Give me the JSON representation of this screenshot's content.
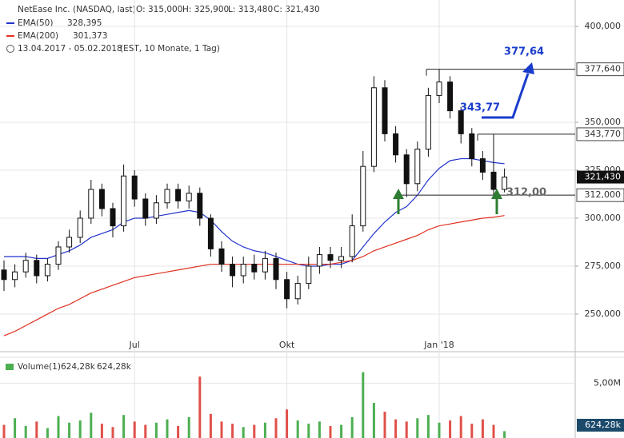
{
  "chart_data": {
    "type": "candlestick",
    "header": {
      "title": "NetEase Inc. (NASDAQ, last)",
      "open": "O: 315,000",
      "high": "H: 325,900",
      "low": "L: 313,480",
      "close": "C: 321,430",
      "period": "13.04.2017 - 05.02.2018",
      "settings": "(EST, 10 Monate, 1 Tag)"
    },
    "categories": [
      null,
      null,
      null,
      null,
      null,
      null,
      null,
      null,
      null,
      null,
      null,
      null,
      "Jul",
      null,
      null,
      null,
      null,
      null,
      null,
      null,
      null,
      null,
      null,
      null,
      null,
      null,
      "Okt",
      null,
      null,
      null,
      null,
      null,
      null,
      null,
      null,
      null,
      null,
      null,
      null,
      null,
      "Jan '18",
      null,
      null,
      null,
      null,
      null,
      null
    ],
    "open": [
      273,
      268,
      272,
      278,
      270,
      276,
      285,
      290,
      300,
      315,
      305,
      296,
      322,
      310,
      300,
      308,
      315,
      309,
      313,
      300,
      284,
      276,
      270,
      276,
      272,
      279,
      268,
      258,
      266,
      275,
      281,
      278,
      280,
      296,
      327,
      368,
      344,
      333,
      318,
      336,
      364,
      371,
      356,
      344,
      331,
      324,
      315
    ],
    "high": [
      278,
      276,
      282,
      281,
      279,
      288,
      294,
      304,
      320,
      318,
      308,
      328,
      325,
      313,
      312,
      318,
      318,
      317,
      316,
      302,
      288,
      280,
      280,
      281,
      283,
      282,
      272,
      270,
      280,
      285,
      285,
      285,
      302,
      335,
      374,
      372,
      348,
      336,
      340,
      368,
      377.64,
      374,
      358,
      347,
      335,
      343.77,
      325.9
    ],
    "low": [
      262,
      264,
      269,
      266,
      267,
      273,
      282,
      287,
      297,
      301,
      290,
      293,
      306,
      296,
      297,
      305,
      305,
      305,
      296,
      280,
      272,
      264,
      266,
      268,
      268,
      263,
      253,
      255,
      263,
      271,
      274,
      274,
      277,
      293,
      324,
      340,
      329,
      311,
      314,
      332,
      360,
      352,
      339,
      327,
      320,
      312,
      313.48
    ],
    "close": [
      268,
      272,
      278,
      270,
      276,
      285,
      290,
      300,
      315,
      305,
      296,
      322,
      310,
      300,
      308,
      315,
      309,
      313,
      300,
      284,
      276,
      270,
      276,
      272,
      279,
      268,
      258,
      266,
      275,
      281,
      278,
      280,
      296,
      327,
      368,
      344,
      333,
      318,
      336,
      364,
      371,
      356,
      344,
      331,
      324,
      315,
      321.43
    ],
    "candle_up_color": "#ffffff",
    "candle_down_color": "#111111",
    "series": [
      {
        "name": "EMA(50)",
        "value_label": "328,395",
        "color": "#2233cc",
        "values": [
          280,
          280,
          280,
          279,
          279,
          281,
          283,
          286,
          290,
          292,
          294,
          298,
          300,
          300,
          301,
          302,
          303,
          304,
          303,
          299,
          293,
          288,
          285,
          283,
          282,
          280,
          278,
          276,
          275,
          275,
          276,
          276,
          278,
          285,
          292,
          298,
          303,
          306,
          312,
          320,
          326,
          330,
          331,
          331,
          330,
          329,
          328.395
        ]
      },
      {
        "name": "EMA(200)",
        "value_label": "301,373",
        "color": "#e03020",
        "values": [
          238.7,
          241,
          244,
          247,
          250,
          253,
          255,
          258,
          261,
          263,
          265,
          267,
          269,
          270,
          271,
          272,
          273,
          274,
          275,
          276,
          276,
          276,
          276,
          276,
          276,
          276,
          276,
          276,
          276,
          276,
          276,
          277,
          278,
          280,
          283,
          285,
          287,
          289,
          291,
          294,
          296,
          297,
          298,
          299,
          300,
          300.5,
          301.373
        ]
      }
    ],
    "ylim": [
      230.4,
      413.75
    ],
    "yticks": [
      {
        "value": 250,
        "label": "250,000"
      },
      {
        "value": 275,
        "label": "275,000"
      },
      {
        "value": 300,
        "label": "300,000"
      },
      {
        "value": 325,
        "label": "325,000"
      },
      {
        "value": 350,
        "label": "350,000"
      },
      {
        "value": 400,
        "label": "400,000"
      }
    ],
    "last_label": "321,430",
    "levels": [
      {
        "value": 377.64,
        "label": "377,640",
        "annotation": "377,64"
      },
      {
        "value": 343.77,
        "label": "343,770",
        "annotation": "343,77"
      },
      {
        "value": 312,
        "label": "312,000",
        "annotation": "312,00"
      }
    ],
    "volume": {
      "name": "Volume(1)",
      "value_label": "624,28k",
      "value_label2": "624,28k",
      "last_label": "624,28k",
      "up_color": "#4caf50",
      "down_color": "#e0504a",
      "values": [
        1.2,
        1.8,
        1.1,
        1.5,
        0.9,
        2.0,
        1.4,
        1.6,
        2.3,
        1.3,
        1.0,
        2.1,
        1.5,
        1.2,
        1.4,
        1.7,
        1.1,
        1.9,
        5.6,
        2.2,
        1.5,
        1.3,
        1.0,
        1.2,
        1.4,
        1.8,
        2.6,
        1.6,
        1.3,
        1.5,
        1.1,
        1.2,
        1.9,
        6.0,
        3.2,
        2.4,
        1.7,
        1.5,
        1.8,
        2.1,
        1.4,
        1.6,
        2.0,
        1.3,
        1.7,
        1.2,
        0.624
      ],
      "ylim": [
        0,
        7.36
      ],
      "yticks": [
        {
          "value": 5,
          "label": "5,00M"
        }
      ]
    },
    "grid": true
  }
}
